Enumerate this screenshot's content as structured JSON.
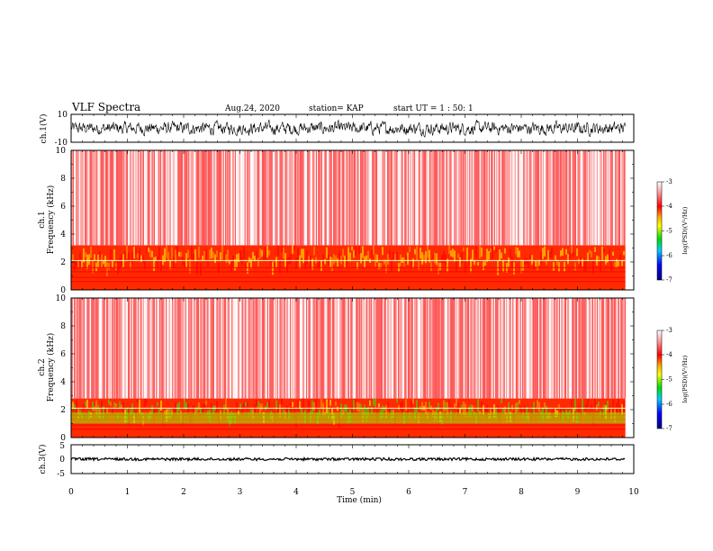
{
  "header": {
    "title": "VLF Spectra",
    "date": "Aug.24, 2020",
    "station": "station= KAP",
    "start": "start UT =  1 : 50: 1"
  },
  "colors": {
    "spectrum_scale": [
      "#ffffff",
      "#ff9090",
      "#ff0000",
      "#ffaa00",
      "#ffff00",
      "#00dd00",
      "#00ccff",
      "#0000ff",
      "#000080"
    ],
    "trace": "#000000"
  },
  "chart_data": [
    {
      "type": "line",
      "panel": "ch1-waveform",
      "ylabel": "ch.1(V)",
      "ylim": [
        -10,
        10
      ],
      "y_tick_labels": [
        "10",
        "-10"
      ],
      "x_range_min": [
        0,
        9.85
      ],
      "description_values": "noisy waveform oscillating roughly between -6 and +6 V"
    },
    {
      "type": "heatmap",
      "panel": "ch1-spectrogram",
      "ylabel": "ch.1\nFrequency (kHz)",
      "ylim": [
        0,
        10
      ],
      "y_tick_labels": [
        "0",
        "2",
        "4",
        "6",
        "8",
        "10"
      ],
      "colorbar_label": "log(PSD)(V²/Hz)",
      "colorbar_range": [
        -7,
        -3
      ],
      "colorbar_tick_labels": [
        "-3",
        "-4",
        "-5",
        "-6",
        "-7"
      ],
      "dominant_band_khz": [
        0,
        3.2
      ]
    },
    {
      "type": "heatmap",
      "panel": "ch2-spectrogram",
      "ylabel": "ch.2\nFrequency (kHz)",
      "ylim": [
        0,
        10
      ],
      "y_tick_labels": [
        "0",
        "2",
        "4",
        "6",
        "8",
        "10"
      ],
      "colorbar_label": "log(PSD)(V²/Hz)",
      "colorbar_range": [
        -7,
        -3
      ],
      "colorbar_tick_labels": [
        "-3",
        "-4",
        "-5",
        "-6",
        "-7"
      ],
      "dominant_band_khz": [
        0,
        2.8
      ]
    },
    {
      "type": "line",
      "panel": "ch3-waveform",
      "ylabel": "ch.3(V)",
      "ylim": [
        -5,
        5
      ],
      "y_tick_labels": [
        "5",
        "0",
        "-5"
      ],
      "description_values": "near-constant trace at about 0 V"
    }
  ],
  "x_axis": {
    "label": "Time (min)",
    "range": [
      0,
      10
    ],
    "tick_labels": [
      "0",
      "1",
      "2",
      "3",
      "4",
      "5",
      "6",
      "7",
      "8",
      "9",
      "10"
    ]
  }
}
